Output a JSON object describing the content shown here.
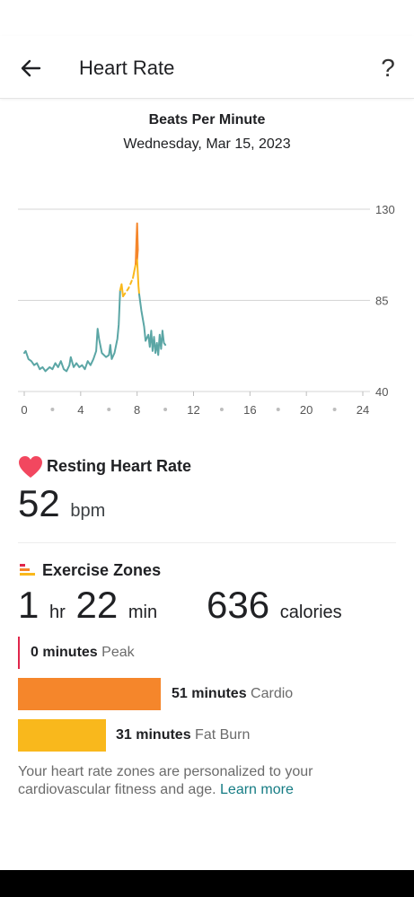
{
  "header": {
    "title": "Heart Rate"
  },
  "chart_data": {
    "type": "line",
    "title": "Beats Per Minute",
    "subtitle": "Wednesday, Mar 15, 2023",
    "x_ticks": [
      "0",
      "4",
      "8",
      "12",
      "16",
      "20",
      "24"
    ],
    "y_ticks": [
      "130",
      "85",
      "40"
    ],
    "xlim": [
      0,
      24
    ],
    "ylim": [
      40,
      130
    ],
    "grid": true,
    "colors": {
      "normal": "#5ba6a5",
      "fat_burn": "#f9b81c",
      "cardio": "#f5862b",
      "grid": "#d5d5d5"
    },
    "series": [
      {
        "zone": "normal",
        "points": [
          [
            0.0,
            59
          ],
          [
            0.1,
            60
          ],
          [
            0.3,
            56
          ],
          [
            0.5,
            55
          ],
          [
            0.7,
            53
          ],
          [
            0.9,
            54
          ],
          [
            1.1,
            51
          ],
          [
            1.3,
            52
          ],
          [
            1.5,
            50
          ],
          [
            1.8,
            52
          ],
          [
            2.0,
            51
          ],
          [
            2.2,
            54
          ],
          [
            2.4,
            52
          ],
          [
            2.6,
            55
          ],
          [
            2.8,
            51
          ],
          [
            3.0,
            50
          ],
          [
            3.2,
            53
          ],
          [
            3.3,
            57
          ],
          [
            3.5,
            52
          ],
          [
            3.7,
            54
          ],
          [
            3.9,
            52
          ],
          [
            4.1,
            53
          ],
          [
            4.3,
            51
          ],
          [
            4.5,
            55
          ],
          [
            4.7,
            53
          ],
          [
            4.9,
            56
          ],
          [
            5.1,
            60
          ],
          [
            5.2,
            71
          ],
          [
            5.3,
            66
          ],
          [
            5.5,
            59
          ],
          [
            5.8,
            57
          ],
          [
            6.0,
            58
          ],
          [
            6.1,
            63
          ],
          [
            6.2,
            56
          ],
          [
            6.4,
            59
          ],
          [
            6.6,
            66
          ],
          [
            6.7,
            73
          ],
          [
            6.8,
            90
          ]
        ]
      },
      {
        "zone": "fat_burn",
        "points": [
          [
            6.8,
            90
          ],
          [
            6.9,
            93
          ],
          [
            7.0,
            87
          ]
        ]
      },
      {
        "zone": "fat_burn",
        "dashed": true,
        "points": [
          [
            7.0,
            87
          ],
          [
            7.4,
            91
          ],
          [
            7.7,
            96
          ]
        ]
      },
      {
        "zone": "fat_burn",
        "points": [
          [
            7.7,
            96
          ],
          [
            7.9,
            103
          ]
        ]
      },
      {
        "zone": "cardio",
        "points": [
          [
            7.9,
            103
          ],
          [
            7.95,
            114
          ],
          [
            8.0,
            123
          ],
          [
            8.05,
            110
          ],
          [
            8.0,
            105
          ]
        ]
      },
      {
        "zone": "fat_burn",
        "points": [
          [
            8.0,
            105
          ],
          [
            8.1,
            92
          ],
          [
            8.15,
            88
          ]
        ]
      },
      {
        "zone": "normal",
        "points": [
          [
            8.15,
            88
          ],
          [
            8.3,
            80
          ],
          [
            8.5,
            72
          ],
          [
            8.6,
            65
          ],
          [
            8.8,
            68
          ],
          [
            8.9,
            62
          ],
          [
            9.0,
            70
          ],
          [
            9.1,
            60
          ],
          [
            9.2,
            67
          ],
          [
            9.3,
            59
          ],
          [
            9.4,
            64
          ],
          [
            9.5,
            58
          ],
          [
            9.6,
            68
          ],
          [
            9.7,
            61
          ],
          [
            9.8,
            70
          ],
          [
            9.9,
            64
          ],
          [
            10.0,
            63
          ]
        ]
      }
    ]
  },
  "resting": {
    "title": "Resting Heart Rate",
    "value": "52",
    "unit": "bpm"
  },
  "zones": {
    "title": "Exercise Zones",
    "duration": {
      "hours": "1",
      "hours_unit": "hr",
      "minutes": "22",
      "minutes_unit": "min"
    },
    "calories": {
      "value": "636",
      "unit": "calories"
    },
    "rows": [
      {
        "minutes": "0 minutes",
        "name": "Peak",
        "color": "#e0264b",
        "fraction": 0
      },
      {
        "minutes": "51 minutes",
        "name": "Cardio",
        "color": "#f5862b",
        "fraction": 0.62
      },
      {
        "minutes": "31 minutes",
        "name": "Fat Burn",
        "color": "#f9b81c",
        "fraction": 0.38
      }
    ]
  },
  "footnote": {
    "text": "Your heart rate zones are personalized to your cardiovascular fitness and age.",
    "link": "Learn more"
  },
  "icons": {
    "back": "arrow-left-icon",
    "help": "question-mark-icon",
    "heart": "heart-icon",
    "zones": "bars-icon"
  }
}
